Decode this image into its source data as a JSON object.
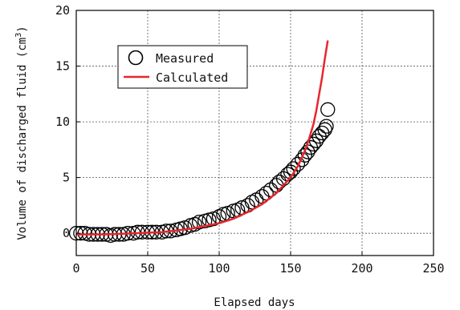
{
  "chart_data": {
    "type": "scatter",
    "xlabel": "Elapsed days",
    "ylabel": "Volume of discharged fluid (cm",
    "ylabel_sup": "3",
    "ylabel_close": ")",
    "xlim": [
      0,
      250
    ],
    "ylim": [
      -2,
      20
    ],
    "xticks": [
      "0",
      "50",
      "100",
      "150",
      "200",
      "250"
    ],
    "yticks": [
      "0",
      "5",
      "10",
      "15",
      "20"
    ],
    "grid": true,
    "legend_position": "upper-left",
    "series": [
      {
        "name": "Measured",
        "marker": "open-circle",
        "color": "#000000",
        "x": [
          0,
          3,
          6,
          9,
          12,
          15,
          18,
          21,
          24,
          27,
          30,
          33,
          36,
          40,
          43,
          46,
          50,
          53,
          56,
          60,
          63,
          66,
          70,
          73,
          76,
          80,
          83,
          86,
          90,
          93,
          96,
          100,
          103,
          106,
          110,
          113,
          116,
          120,
          123,
          126,
          130,
          133,
          136,
          140,
          142,
          145,
          148,
          150,
          152,
          155,
          158,
          160,
          162,
          164,
          166,
          168,
          170,
          172,
          174,
          175,
          176
        ],
        "y": [
          0.0,
          0.0,
          0.0,
          -0.1,
          -0.1,
          -0.1,
          -0.1,
          -0.1,
          -0.2,
          -0.1,
          -0.1,
          -0.1,
          0.0,
          0.0,
          0.1,
          0.1,
          0.1,
          0.1,
          0.1,
          0.1,
          0.2,
          0.2,
          0.3,
          0.4,
          0.5,
          0.7,
          0.8,
          1.0,
          1.1,
          1.2,
          1.3,
          1.5,
          1.7,
          1.8,
          2.0,
          2.1,
          2.3,
          2.5,
          2.8,
          3.0,
          3.3,
          3.6,
          3.9,
          4.3,
          4.6,
          4.9,
          5.3,
          5.5,
          5.8,
          6.2,
          6.6,
          7.0,
          7.3,
          7.7,
          8.0,
          8.3,
          8.7,
          9.0,
          9.3,
          9.6,
          11.1
        ]
      },
      {
        "name": "Calculated",
        "marker": "line",
        "color": "#e8262d",
        "x": [
          0,
          20,
          40,
          60,
          80,
          100,
          110,
          120,
          130,
          140,
          150,
          155,
          160,
          163,
          166,
          168,
          170,
          172,
          174,
          176
        ],
        "y": [
          -0.1,
          -0.1,
          0.0,
          0.1,
          0.4,
          0.9,
          1.3,
          1.9,
          2.6,
          3.6,
          5.0,
          6.0,
          7.4,
          8.5,
          9.8,
          11.0,
          12.5,
          14.0,
          15.7,
          17.3
        ]
      }
    ]
  }
}
